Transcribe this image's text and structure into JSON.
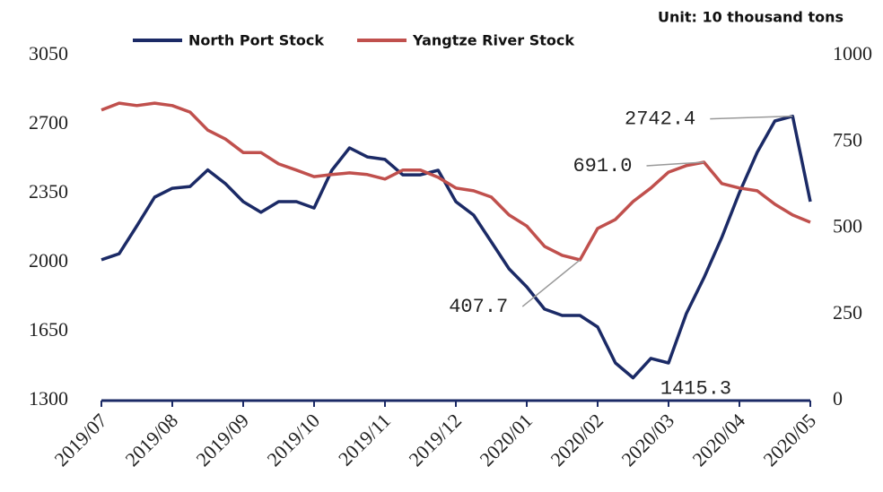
{
  "chart_data": {
    "type": "line",
    "unit": "Unit: 10 thousand tons",
    "xlim": [
      0,
      10
    ],
    "xticks": [
      {
        "value": 0,
        "label": "2019/07"
      },
      {
        "value": 1,
        "label": "2019/08"
      },
      {
        "value": 2,
        "label": "2019/09"
      },
      {
        "value": 3,
        "label": "2019/10"
      },
      {
        "value": 4,
        "label": "2019/11"
      },
      {
        "value": 5,
        "label": "2019/12"
      },
      {
        "value": 6,
        "label": "2020/01"
      },
      {
        "value": 7,
        "label": "2020/02"
      },
      {
        "value": 8,
        "label": "2020/03"
      },
      {
        "value": 9,
        "label": "2020/04"
      },
      {
        "value": 10,
        "label": "2020/05"
      }
    ],
    "x": [
      0,
      0.25,
      0.5,
      0.75,
      1,
      1.25,
      1.5,
      1.75,
      2,
      2.25,
      2.5,
      2.75,
      3,
      3.25,
      3.5,
      3.75,
      4,
      4.25,
      4.5,
      4.75,
      5,
      5.25,
      5.5,
      5.75,
      6,
      6.25,
      6.5,
      6.75,
      7,
      7.25,
      7.5,
      7.75,
      8,
      8.25,
      8.5,
      8.75,
      9,
      9.25,
      9.5,
      9.75,
      10
    ],
    "ylim": [
      1300,
      3050
    ],
    "yticks": [
      1300,
      1650,
      2000,
      2350,
      2700,
      3050
    ],
    "y2lim": [
      0,
      1000
    ],
    "y2ticks": [
      0,
      250,
      500,
      750,
      1000
    ],
    "series": [
      {
        "name": "North Port Stock",
        "color": "#1b2a66",
        "axis": "y",
        "values": [
          2014,
          2045,
          2186,
          2332,
          2377,
          2386,
          2470,
          2400,
          2309,
          2255,
          2309,
          2309,
          2277,
          2468,
          2582,
          2536,
          2523,
          2445,
          2445,
          2468,
          2309,
          2241,
          2105,
          1968,
          1877,
          1764,
          1732,
          1732,
          1673,
          1491,
          1415.3,
          1514,
          1491,
          1741,
          1923,
          2127,
          2355,
          2559,
          2718,
          2742.4,
          2309
        ],
        "value_labels": [
          null,
          null,
          null,
          null,
          null,
          null,
          null,
          null,
          null,
          null,
          null,
          null,
          null,
          null,
          null,
          null,
          null,
          null,
          null,
          null,
          null,
          null,
          null,
          null,
          null,
          null,
          null,
          null,
          null,
          null,
          "1415.3",
          null,
          null,
          null,
          null,
          null,
          null,
          null,
          null,
          "2742.4",
          null
        ]
      },
      {
        "name": "Yangtze River Stock",
        "color": "#c0504d",
        "axis": "y2",
        "values": [
          842,
          862,
          855,
          862,
          855,
          836,
          784,
          758,
          719,
          719,
          686,
          668,
          649,
          655,
          660,
          655,
          642,
          668,
          668,
          647,
          616,
          608,
          590,
          538,
          506,
          447,
          421,
          407.7,
          499,
          525,
          577,
          616,
          662,
          681,
          691,
          629,
          616,
          608,
          569,
          538,
          517
        ],
        "value_labels": [
          null,
          null,
          null,
          null,
          null,
          null,
          null,
          null,
          null,
          null,
          null,
          null,
          null,
          null,
          null,
          null,
          null,
          null,
          null,
          null,
          null,
          null,
          null,
          null,
          null,
          null,
          null,
          "407.7",
          null,
          null,
          null,
          null,
          null,
          null,
          "691.0",
          null,
          null,
          null,
          null,
          null,
          null
        ]
      }
    ]
  }
}
